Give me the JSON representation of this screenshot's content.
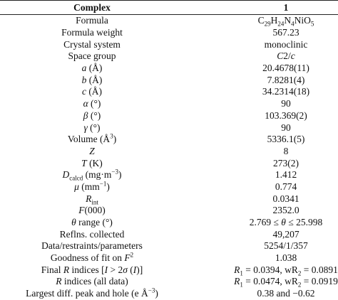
{
  "table": {
    "header": [
      "Complex",
      "1"
    ],
    "rows": [
      [
        [
          "Formula"
        ],
        [
          "C",
          "29",
          "H",
          "24",
          "N",
          "4",
          "NiO",
          "5"
        ]
      ],
      [
        [
          "Formula weight"
        ],
        [
          "567.23"
        ]
      ],
      [
        [
          "Crystal system"
        ],
        [
          "monoclinic"
        ]
      ],
      [
        [
          "Space group"
        ],
        [
          "C",
          "2/",
          "c"
        ]
      ],
      [
        [
          "a",
          " (Å)"
        ],
        [
          "20.4678(11)"
        ]
      ],
      [
        [
          "b",
          " (Å)"
        ],
        [
          "7.8281(4)"
        ]
      ],
      [
        [
          "c",
          " (Å)"
        ],
        [
          "34.2314(18)"
        ]
      ],
      [
        [
          "α",
          " (°)"
        ],
        [
          "90"
        ]
      ],
      [
        [
          "β",
          " (°)"
        ],
        [
          "103.369(2)"
        ]
      ],
      [
        [
          "γ",
          " (°)"
        ],
        [
          "90"
        ]
      ],
      [
        [
          "Volume (Å",
          "3",
          ")"
        ],
        [
          "5336.1(5)"
        ]
      ],
      [
        [
          "Z"
        ],
        [
          "8"
        ]
      ],
      [
        [
          "T",
          " (K)"
        ],
        [
          "273(2)"
        ]
      ],
      [
        [
          "D",
          "calcd",
          " (mg·m",
          "−3",
          ")"
        ],
        [
          "1.412"
        ]
      ],
      [
        [
          "μ",
          " (mm",
          "−1",
          ")"
        ],
        [
          "0.774"
        ]
      ],
      [
        [
          "R",
          "int"
        ],
        [
          "0.0341"
        ]
      ],
      [
        [
          "F",
          "(000)"
        ],
        [
          "2352.0"
        ]
      ],
      [
        [
          "θ",
          " range (°)"
        ],
        [
          "2.769 ≤ ",
          "θ",
          " ≤ 25.998"
        ]
      ],
      [
        [
          "Reflns. collected"
        ],
        [
          "49,207"
        ]
      ],
      [
        [
          "Data/restraints/parameters"
        ],
        [
          "5254/1/357"
        ]
      ],
      [
        [
          "Goodness of fit on ",
          "F",
          "2"
        ],
        [
          "1.038"
        ]
      ],
      [
        [
          "Final ",
          "R",
          " indices [",
          "I",
          " > 2",
          "σ",
          " (",
          "I",
          ")]"
        ],
        [
          "R",
          "1",
          " = 0.0394, wR",
          "2",
          " = 0.0891"
        ]
      ],
      [
        [
          "R",
          " indices (all data)"
        ],
        [
          "R",
          "1",
          " = 0.0474, wR",
          "2",
          " = 0.0919"
        ]
      ],
      [
        [
          "Largest diff. peak and hole (e Å",
          "−3",
          ")"
        ],
        [
          "0.38 and −0.62"
        ]
      ]
    ]
  }
}
